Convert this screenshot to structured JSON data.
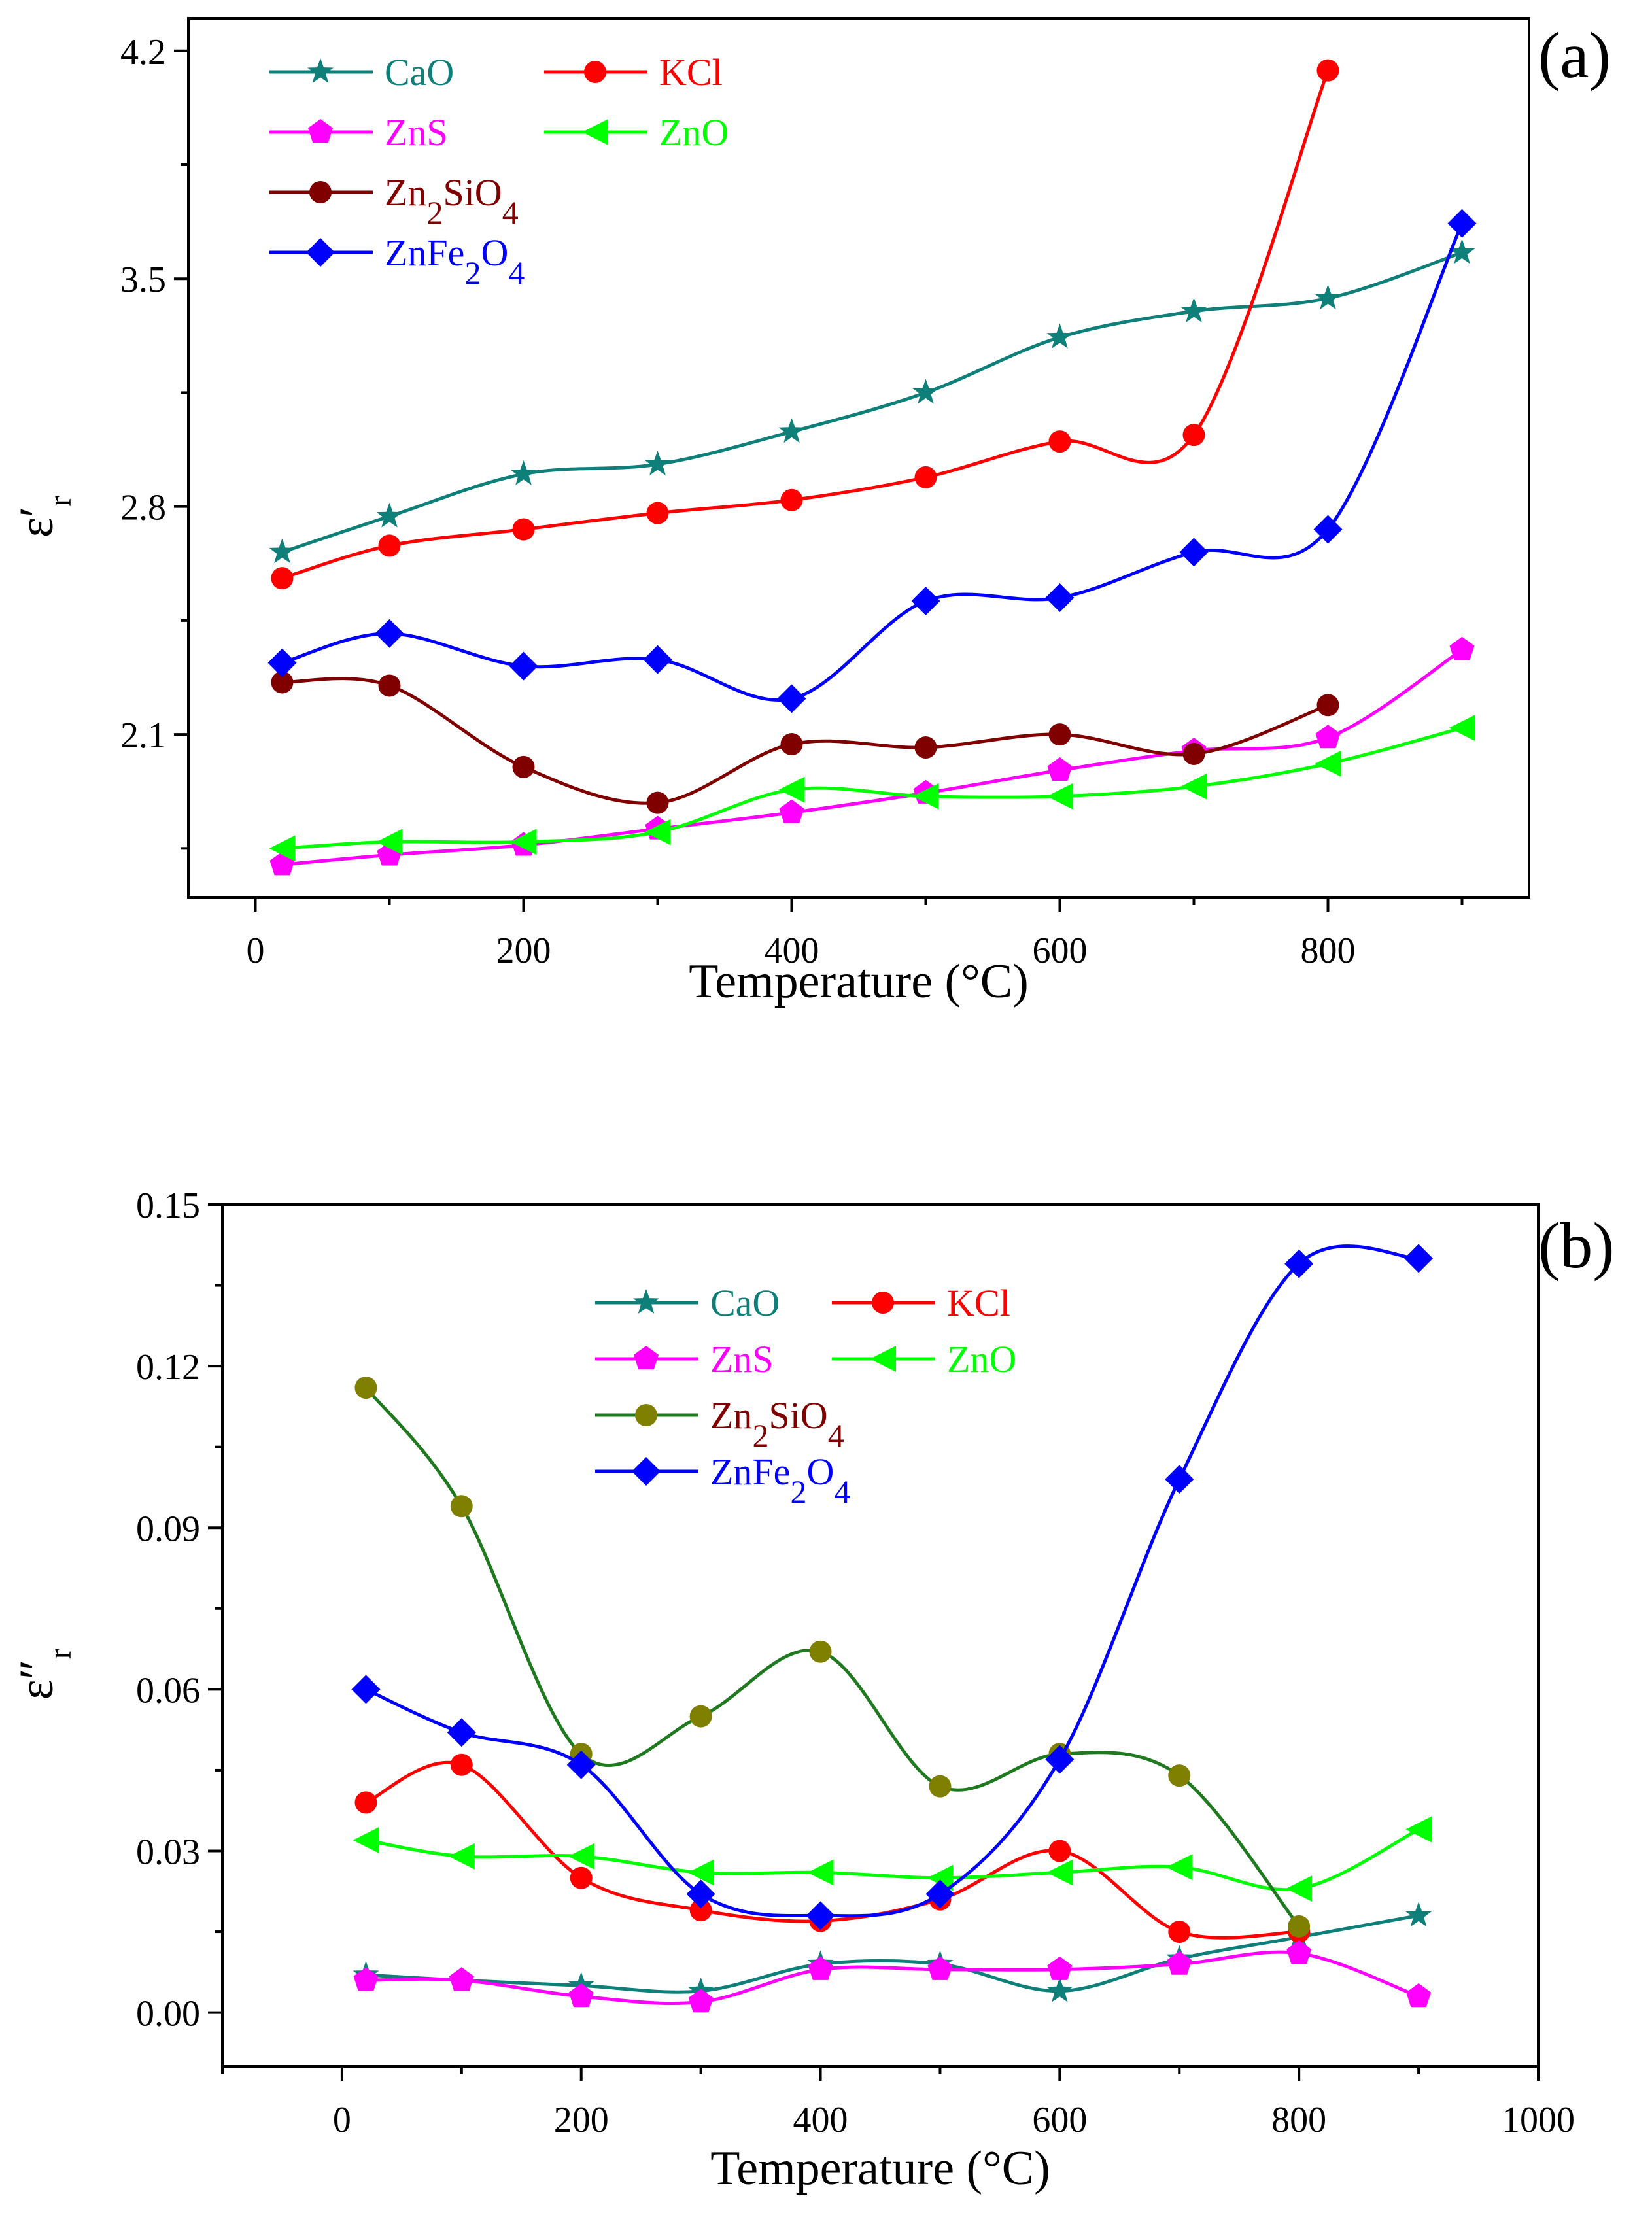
{
  "chart_data": [
    {
      "type": "line",
      "panel_label": "(a)",
      "xlabel": "Temperature (°C)",
      "ylabel": "ε′r",
      "xlim": [
        -50,
        950
      ],
      "ylim": [
        1.6,
        4.3
      ],
      "x_ticks": [
        0,
        200,
        400,
        600,
        800
      ],
      "y_ticks": [
        2.1,
        2.8,
        3.5,
        4.2
      ],
      "grid": false,
      "legend_position": "top-left",
      "series": [
        {
          "name": "CaO",
          "color": "#0f7f7a",
          "marker": "star",
          "x": [
            20,
            100,
            200,
            300,
            400,
            500,
            600,
            700,
            800,
            900
          ],
          "y": [
            2.66,
            2.77,
            2.9,
            2.93,
            3.03,
            3.15,
            3.32,
            3.4,
            3.44,
            3.58
          ]
        },
        {
          "name": "KCl",
          "color": "#ff0000",
          "marker": "circle",
          "x": [
            20,
            100,
            200,
            300,
            400,
            500,
            600,
            700,
            800
          ],
          "y": [
            2.58,
            2.68,
            2.73,
            2.78,
            2.82,
            2.89,
            3.0,
            3.02,
            4.14
          ]
        },
        {
          "name": "ZnS",
          "color": "#ff00ff",
          "marker": "pentagon",
          "x": [
            20,
            100,
            200,
            300,
            400,
            500,
            600,
            700,
            800,
            900
          ],
          "y": [
            1.7,
            1.73,
            1.76,
            1.81,
            1.86,
            1.92,
            1.99,
            2.05,
            2.09,
            2.36
          ]
        },
        {
          "name": "ZnO",
          "color": "#00ff00",
          "marker": "triangle-left",
          "x": [
            20,
            100,
            200,
            300,
            400,
            500,
            600,
            700,
            800,
            900
          ],
          "y": [
            1.75,
            1.77,
            1.77,
            1.8,
            1.93,
            1.91,
            1.91,
            1.94,
            2.01,
            2.12
          ]
        },
        {
          "name": "Zn2SiO4",
          "name_parts": {
            "a": "Zn",
            "b": "2",
            "c": "SiO",
            "d": "4"
          },
          "color": "#800000",
          "marker": "circle",
          "x": [
            20,
            100,
            200,
            300,
            400,
            500,
            600,
            700,
            800
          ],
          "y": [
            2.26,
            2.25,
            2.0,
            1.89,
            2.07,
            2.06,
            2.1,
            2.04,
            2.19
          ]
        },
        {
          "name": "ZnFe2O4",
          "name_parts": {
            "a": "ZnFe",
            "b": "2",
            "c": "O",
            "d": "4"
          },
          "color": "#0000ff",
          "marker": "diamond",
          "x": [
            20,
            100,
            200,
            300,
            400,
            500,
            600,
            700,
            800,
            900
          ],
          "y": [
            2.32,
            2.41,
            2.31,
            2.33,
            2.21,
            2.51,
            2.52,
            2.66,
            2.73,
            3.67
          ]
        }
      ]
    },
    {
      "type": "line",
      "panel_label": "(b)",
      "xlabel": "Temperature (°C)",
      "ylabel": "ε″r",
      "xlim": [
        -100,
        1000
      ],
      "ylim": [
        -0.01,
        0.15
      ],
      "x_ticks": [
        0,
        200,
        400,
        600,
        800,
        1000
      ],
      "y_ticks": [
        0.0,
        0.03,
        0.06,
        0.09,
        0.12,
        0.15
      ],
      "y_tick_labels": [
        "0.00",
        "0.03",
        "0.06",
        "0.09",
        "0.12",
        "0.15"
      ],
      "grid": false,
      "legend_position": "top-center",
      "series": [
        {
          "name": "CaO",
          "color": "#0f7f7a",
          "marker": "star",
          "x": [
            20,
            100,
            200,
            300,
            400,
            500,
            600,
            700,
            800,
            900
          ],
          "y": [
            0.007,
            0.006,
            0.005,
            0.004,
            0.009,
            0.009,
            0.004,
            0.01,
            0.014,
            0.018
          ]
        },
        {
          "name": "KCl",
          "color": "#ff0000",
          "marker": "circle",
          "x": [
            20,
            100,
            200,
            300,
            400,
            500,
            600,
            700,
            800
          ],
          "y": [
            0.039,
            0.046,
            0.025,
            0.019,
            0.017,
            0.021,
            0.03,
            0.015,
            0.015
          ]
        },
        {
          "name": "ZnS",
          "color": "#ff00ff",
          "marker": "pentagon",
          "x": [
            20,
            100,
            200,
            300,
            400,
            500,
            600,
            700,
            800,
            900
          ],
          "y": [
            0.006,
            0.006,
            0.003,
            0.002,
            0.008,
            0.008,
            0.008,
            0.009,
            0.011,
            0.003
          ]
        },
        {
          "name": "ZnO",
          "color": "#00ff00",
          "marker": "triangle-left",
          "x": [
            20,
            100,
            200,
            300,
            400,
            500,
            600,
            700,
            800,
            900
          ],
          "y": [
            0.032,
            0.029,
            0.029,
            0.026,
            0.026,
            0.025,
            0.026,
            0.027,
            0.023,
            0.034
          ]
        },
        {
          "name": "Zn2SiO4",
          "name_parts": {
            "a": "Zn",
            "b": "2",
            "c": "SiO",
            "d": "4"
          },
          "color": "#808000",
          "line_color": "#1f7a1f",
          "legend_text_color": "#800000",
          "marker": "circle",
          "x": [
            20,
            100,
            200,
            300,
            400,
            500,
            600,
            700,
            800
          ],
          "y": [
            0.116,
            0.094,
            0.048,
            0.055,
            0.067,
            0.042,
            0.048,
            0.044,
            0.016
          ]
        },
        {
          "name": "ZnFe2O4",
          "name_parts": {
            "a": "ZnFe",
            "b": "2",
            "c": "O",
            "d": "4"
          },
          "color": "#0000ff",
          "marker": "diamond",
          "x": [
            20,
            100,
            200,
            300,
            400,
            500,
            600,
            700,
            800,
            900
          ],
          "y": [
            0.06,
            0.052,
            0.046,
            0.022,
            0.018,
            0.022,
            0.047,
            0.099,
            0.139,
            0.14
          ]
        }
      ]
    }
  ]
}
